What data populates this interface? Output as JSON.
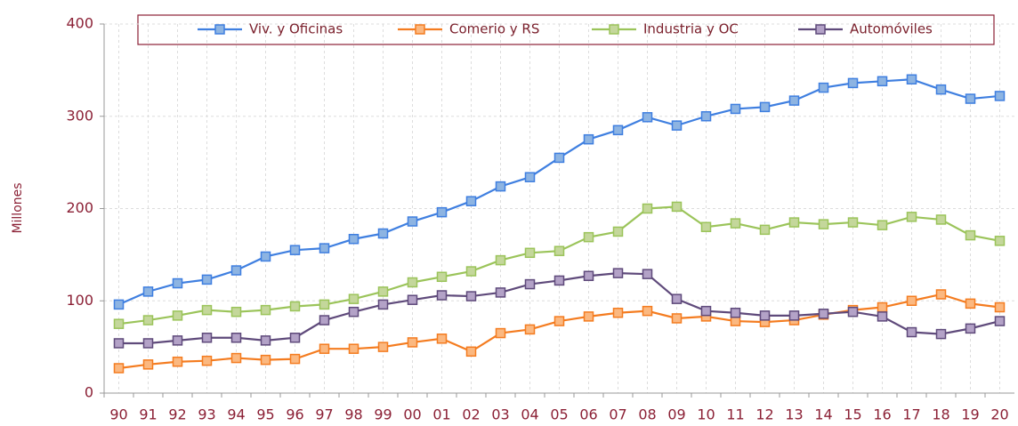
{
  "chart_data": {
    "type": "line",
    "y_label": "Millones",
    "categories": [
      "90",
      "91",
      "92",
      "93",
      "94",
      "95",
      "96",
      "97",
      "98",
      "99",
      "00",
      "01",
      "02",
      "03",
      "04",
      "05",
      "06",
      "07",
      "08",
      "09",
      "10",
      "11",
      "12",
      "13",
      "14",
      "15",
      "16",
      "17",
      "18",
      "19",
      "20"
    ],
    "series": [
      {
        "name": "Viv. y Oficinas",
        "color": "#3f7fe0",
        "marker_color": "#8db4e2",
        "values": [
          96,
          110,
          119,
          123,
          133,
          148,
          155,
          157,
          167,
          173,
          186,
          196,
          208,
          224,
          234,
          255,
          275,
          285,
          299,
          290,
          300,
          308,
          310,
          317,
          331,
          336,
          338,
          340,
          329,
          319,
          322
        ]
      },
      {
        "name": "Comerio y RS",
        "color": "#f47c20",
        "marker_color": "#fbb880",
        "values": [
          27,
          31,
          34,
          35,
          38,
          36,
          37,
          48,
          48,
          50,
          55,
          59,
          45,
          65,
          69,
          78,
          83,
          87,
          89,
          81,
          83,
          78,
          77,
          79,
          85,
          90,
          93,
          100,
          107,
          97,
          93
        ]
      },
      {
        "name": "Industria y OC",
        "color": "#9bc45a",
        "marker_color": "#c4d79b",
        "values": [
          75,
          79,
          84,
          90,
          88,
          90,
          94,
          96,
          102,
          110,
          120,
          126,
          132,
          144,
          152,
          154,
          169,
          175,
          200,
          202,
          180,
          184,
          177,
          185,
          183,
          185,
          182,
          191,
          188,
          171,
          165
        ]
      },
      {
        "name": "Automóviles",
        "color": "#5f4a7b",
        "marker_color": "#b3a2c7",
        "values": [
          54,
          54,
          57,
          60,
          60,
          57,
          60,
          79,
          88,
          96,
          101,
          106,
          105,
          109,
          118,
          122,
          127,
          130,
          129,
          102,
          89,
          87,
          84,
          84,
          86,
          88,
          83,
          66,
          64,
          70,
          78
        ]
      }
    ],
    "ylim": [
      0,
      400
    ],
    "yticks": [
      0,
      100,
      200,
      300,
      400
    ],
    "grid": true
  }
}
